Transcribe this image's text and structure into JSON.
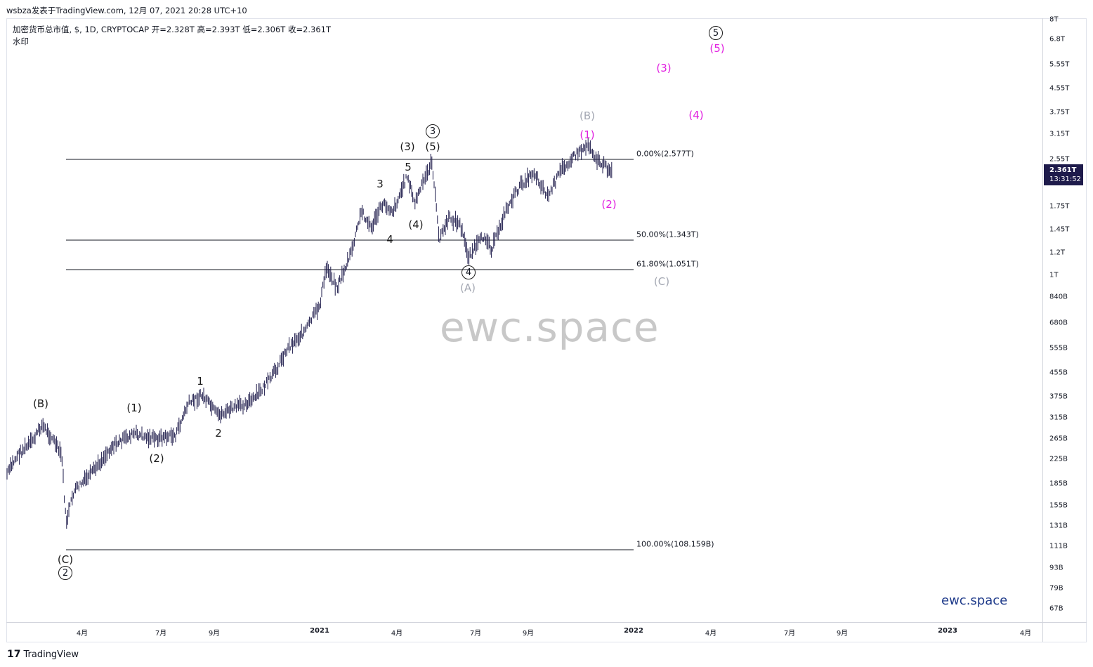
{
  "header": {
    "publish_line": "wsbza发表于TradingView.com, 12月 07, 2021 20:28 UTC+10",
    "legend_line": "加密货币总市值, $, 1D, CRYPTOCAP  开=2.328T  高=2.393T  低=2.306T  收=2.361T",
    "legend_sub": "水印"
  },
  "price_tag": {
    "price": "2.361T",
    "countdown": "13:31:52"
  },
  "watermark": "ewc.space",
  "brand_bottom": "ewc.space",
  "footer_logo": {
    "mark": "17",
    "text": "TradingView"
  },
  "price_axis": [
    "8T",
    "6.8T",
    "5.55T",
    "4.55T",
    "3.75T",
    "3.15T",
    "2.55T",
    "2.1T",
    "1.75T",
    "1.45T",
    "1.2T",
    "1T",
    "840B",
    "680B",
    "555B",
    "455B",
    "375B",
    "315B",
    "265B",
    "225B",
    "185B",
    "155B",
    "131B",
    "111B",
    "93B",
    "79B",
    "67B"
  ],
  "time_axis": [
    "4月",
    "7月",
    "9月",
    "2021",
    "4月",
    "7月",
    "9月",
    "2022",
    "4月",
    "7月",
    "9月",
    "2023",
    "4月"
  ],
  "fib_levels": [
    {
      "label": "0.00%(2.577T)"
    },
    {
      "label": "50.00%(1.343T)"
    },
    {
      "label": "61.80%(1.051T)"
    },
    {
      "label": "100.00%(108.159B)"
    }
  ],
  "wave_labels": [
    {
      "text": "(B)"
    },
    {
      "text": "(C)"
    },
    {
      "text": "2"
    },
    {
      "text": "(1)"
    },
    {
      "text": "(2)"
    },
    {
      "text": "1"
    },
    {
      "text": "2"
    },
    {
      "text": "3"
    },
    {
      "text": "4"
    },
    {
      "text": "5"
    },
    {
      "text": "(3)"
    },
    {
      "text": "(4)"
    },
    {
      "text": "(5)"
    },
    {
      "text": "3"
    },
    {
      "text": "4"
    },
    {
      "text": "(A)"
    },
    {
      "text": "(B)"
    },
    {
      "text": "(1)"
    },
    {
      "text": "(2)"
    },
    {
      "text": "(C)"
    },
    {
      "text": "(3)"
    },
    {
      "text": "(4)"
    },
    {
      "text": "5"
    },
    {
      "text": "(5)"
    }
  ],
  "chart_data": {
    "type": "candlestick",
    "title": "加密货币总市值, $, 1D, CRYPTOCAP",
    "ohlc_last": {
      "open": "2.328T",
      "high": "2.393T",
      "low": "2.306T",
      "close": "2.361T"
    },
    "y_scale": "log",
    "colors": {
      "candles": "#1e1b4b",
      "impulse_labels": "#1a1a1a",
      "corrective_gray": "#a3a7b2",
      "projection": "#e11fe0"
    },
    "x": [
      "2020-01",
      "2020-03",
      "2020-04",
      "2020-06",
      "2020-07",
      "2020-08",
      "2020-09",
      "2020-10",
      "2020-11",
      "2020-12",
      "2021-01",
      "2021-02",
      "2021-03",
      "2021-04",
      "2021-05",
      "2021-06",
      "2021-07",
      "2021-08",
      "2021-09",
      "2021-10",
      "2021-11",
      "2021-12"
    ],
    "values_usd_trillion": [
      0.19,
      0.27,
      0.17,
      0.26,
      0.28,
      0.38,
      0.33,
      0.36,
      0.46,
      0.6,
      0.98,
      1.45,
      1.7,
      2.2,
      2.5,
      1.35,
      1.3,
      1.9,
      2.1,
      2.5,
      2.9,
      2.36
    ],
    "fib_retracement": [
      {
        "level": 0.0,
        "value": "2.577T"
      },
      {
        "level": 0.5,
        "value": "1.343T"
      },
      {
        "level": 0.618,
        "value": "1.051T"
      },
      {
        "level": 1.0,
        "value": "108.159B"
      }
    ]
  }
}
